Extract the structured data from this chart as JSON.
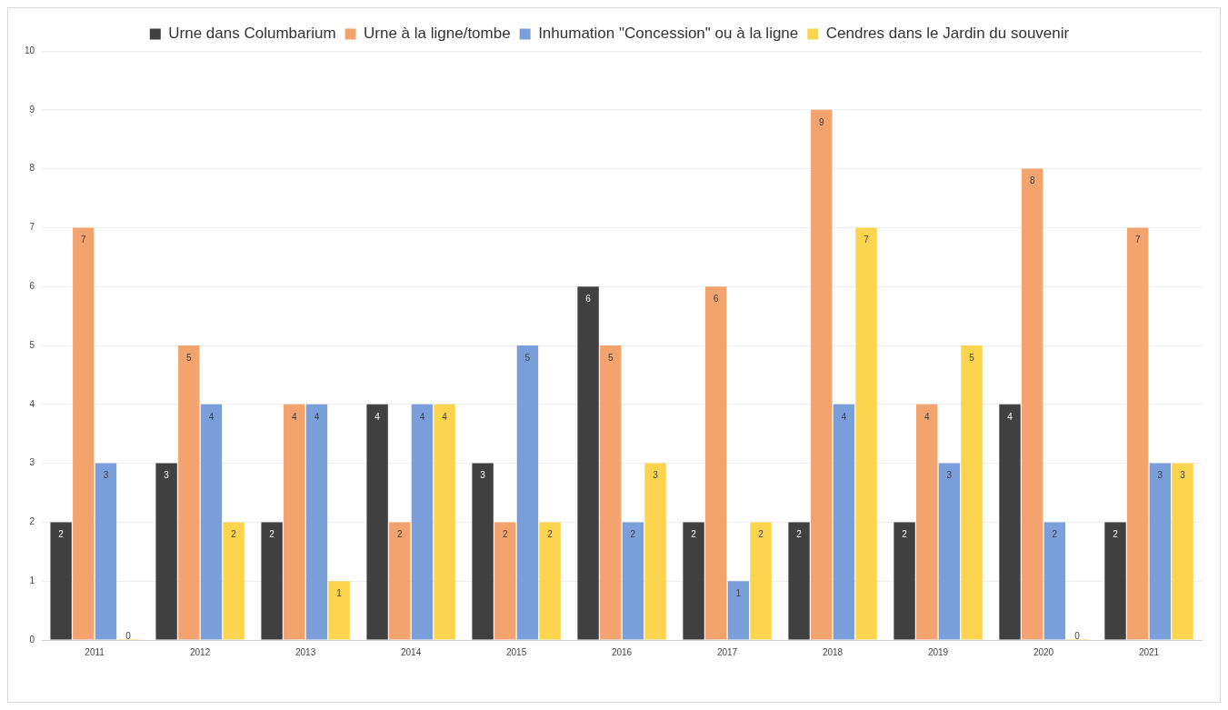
{
  "chart_data": {
    "type": "bar",
    "categories": [
      "2011",
      "2012",
      "2013",
      "2014",
      "2015",
      "2016",
      "2017",
      "2018",
      "2019",
      "2020",
      "2021"
    ],
    "series": [
      {
        "name": "Urne dans Columbarium",
        "color": "#404040",
        "values": [
          2,
          3,
          2,
          4,
          3,
          6,
          2,
          2,
          2,
          4,
          2
        ]
      },
      {
        "name": "Urne à la ligne/tombe",
        "color": "#f2a36e",
        "values": [
          7,
          5,
          4,
          2,
          2,
          5,
          6,
          9,
          4,
          8,
          7
        ]
      },
      {
        "name": "Inhumation \"Concession\" ou à la ligne",
        "color": "#7b9fda",
        "values": [
          3,
          4,
          4,
          4,
          5,
          2,
          1,
          4,
          3,
          2,
          3
        ]
      },
      {
        "name": "Cendres dans le Jardin du souvenir",
        "color": "#fdd44e",
        "values": [
          0,
          2,
          1,
          4,
          2,
          3,
          2,
          7,
          5,
          0,
          3
        ]
      }
    ],
    "ylim": [
      0,
      10
    ],
    "yticks": [
      0,
      1,
      2,
      3,
      4,
      5,
      6,
      7,
      8,
      9,
      10
    ],
    "grid": "y",
    "legend": "top",
    "data_labels": true
  }
}
